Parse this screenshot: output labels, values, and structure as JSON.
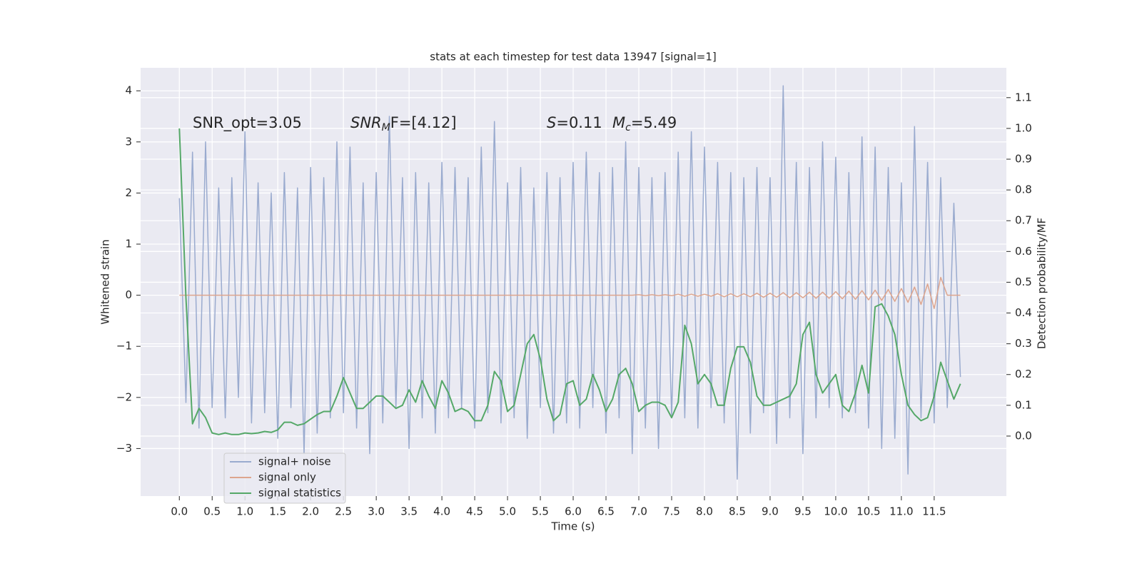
{
  "chart_data": {
    "type": "line",
    "title": "stats at each timestep for test data 13947 [signal=1]",
    "xlabel": "Time (s)",
    "ylabel": "Whitened strain",
    "y2label": "Detection probability/MF",
    "annotations": [
      {
        "main": "SNR_opt=3.05"
      },
      {
        "main": "SNR",
        "sub": "M",
        "rest": "F=[4.12]"
      },
      {
        "main": "S",
        "rest": "=0.11"
      },
      {
        "main": "M",
        "sub": "c",
        "rest": "=5.49"
      }
    ],
    "xlim": [
      -0.59,
      12.6
    ],
    "ylim": [
      -3.93,
      4.45
    ],
    "y2lim": [
      -0.195,
      1.197
    ],
    "xticks": [
      {
        "value": 0,
        "label": "0.0"
      },
      0.5,
      {
        "value": 1,
        "label": "1.0"
      },
      1.5,
      {
        "value": 2,
        "label": "2.0"
      },
      2.5,
      {
        "value": 3,
        "label": "3.0"
      },
      3.5,
      {
        "value": 4,
        "label": "4.0"
      },
      4.5,
      {
        "value": 5,
        "label": "5.0"
      },
      5.5,
      {
        "value": 6,
        "label": "6.0"
      },
      6.5,
      {
        "value": 7,
        "label": "7.0"
      },
      7.5,
      {
        "value": 8,
        "label": "8.0"
      },
      8.5,
      {
        "value": 9,
        "label": "9.0"
      },
      9.5,
      {
        "value": 10,
        "label": "10.0"
      },
      10.5,
      {
        "value": 11,
        "label": "11.0"
      },
      11.5
    ],
    "yticks": [
      {
        "value": -3,
        "label": "−3"
      },
      {
        "value": -2,
        "label": "−2"
      },
      {
        "value": -1,
        "label": "−1"
      },
      0,
      1,
      2,
      3,
      4
    ],
    "y2ticks": [
      {
        "value": 0,
        "label": "0.0"
      },
      0.1,
      0.2,
      0.3,
      0.4,
      0.5,
      0.6,
      0.7,
      0.8,
      0.9,
      {
        "value": 1,
        "label": "1.0"
      },
      1.1
    ],
    "grid": true,
    "legend": "lower left",
    "x": [
      0,
      0.1,
      0.2,
      0.3,
      0.4,
      0.5,
      0.6,
      0.7,
      0.8,
      0.9,
      1,
      1.1,
      1.2,
      1.3,
      1.4,
      1.5,
      1.6,
      1.7,
      1.8,
      1.9,
      2,
      2.1,
      2.2,
      2.3,
      2.4,
      2.5,
      2.6,
      2.7,
      2.8,
      2.9,
      3,
      3.1,
      3.2,
      3.3,
      3.4,
      3.5,
      3.6,
      3.7,
      3.8,
      3.9,
      4,
      4.1,
      4.2,
      4.3,
      4.4,
      4.5,
      4.6,
      4.7,
      4.8,
      4.9,
      5,
      5.1,
      5.2,
      5.3,
      5.4,
      5.5,
      5.6,
      5.7,
      5.8,
      5.9,
      6,
      6.1,
      6.2,
      6.3,
      6.4,
      6.5,
      6.6,
      6.7,
      6.8,
      6.9,
      7,
      7.1,
      7.2,
      7.3,
      7.4,
      7.5,
      7.6,
      7.7,
      7.8,
      7.9,
      8,
      8.1,
      8.2,
      8.3,
      8.4,
      8.5,
      8.6,
      8.7,
      8.8,
      8.9,
      9,
      9.1,
      9.2,
      9.3,
      9.4,
      9.5,
      9.6,
      9.7,
      9.8,
      9.9,
      10,
      10.1,
      10.2,
      10.3,
      10.4,
      10.5,
      10.6,
      10.7,
      10.8,
      10.9,
      11,
      11.1,
      11.2,
      11.3,
      11.4,
      11.5,
      11.6,
      11.7,
      11.8,
      11.9
    ],
    "series": [
      {
        "name": "signal+ noise",
        "color": "#9aabcf",
        "axis": "y",
        "width": 1.5,
        "values": [
          1.9,
          -2.1,
          2.8,
          -2.6,
          3.0,
          -2.2,
          2.1,
          -2.4,
          2.3,
          -2.0,
          3.2,
          -2.5,
          2.2,
          -2.3,
          2.0,
          -2.8,
          2.4,
          -2.2,
          2.1,
          -3.1,
          2.5,
          -2.7,
          2.3,
          -2.4,
          3.0,
          -2.3,
          2.9,
          -2.6,
          2.2,
          -3.1,
          2.4,
          -2.5,
          3.5,
          -2.2,
          2.3,
          -3.0,
          2.4,
          -2.4,
          2.2,
          -2.7,
          2.6,
          -2.4,
          2.5,
          -2.2,
          2.3,
          -2.6,
          2.9,
          -2.3,
          3.4,
          -2.5,
          2.2,
          -2.4,
          2.5,
          -2.8,
          2.1,
          -2.2,
          2.4,
          -2.7,
          2.3,
          -2.5,
          2.6,
          -2.6,
          2.8,
          -2.2,
          2.4,
          -2.7,
          2.5,
          -2.4,
          3.0,
          -3.1,
          2.5,
          -2.6,
          2.3,
          -3.0,
          2.4,
          -2.4,
          2.8,
          -2.4,
          3.2,
          -2.6,
          2.9,
          -2.2,
          2.6,
          -2.5,
          2.4,
          -3.6,
          2.3,
          -2.7,
          2.5,
          -2.3,
          2.3,
          -2.9,
          4.1,
          -2.4,
          2.6,
          -3.1,
          2.5,
          -2.4,
          3.0,
          -2.2,
          2.7,
          -2.4,
          2.4,
          -2.3,
          3.1,
          -2.6,
          2.9,
          -3.0,
          2.5,
          -2.8,
          2.2,
          -3.5,
          3.3,
          -2.4,
          2.6,
          -2.5,
          2.3,
          -2.2,
          1.8,
          -1.6
        ]
      },
      {
        "name": "signal only",
        "color": "#dda58e",
        "axis": "y",
        "width": 1.5,
        "values": [
          0,
          0,
          0,
          0,
          0,
          0,
          0,
          0,
          0,
          0,
          0,
          0,
          0,
          0,
          0,
          0,
          0,
          0,
          0,
          0,
          0,
          0,
          0,
          0,
          0,
          0,
          0,
          0,
          0,
          0,
          0,
          0,
          0,
          0,
          0,
          0,
          0,
          0,
          0,
          0,
          0,
          0,
          0,
          0,
          0,
          0,
          0,
          0,
          0,
          0,
          0,
          0,
          0,
          0,
          0,
          0,
          0,
          0,
          0,
          0,
          0,
          0,
          0,
          0,
          0,
          0,
          0,
          0,
          0,
          0,
          0.01,
          -0.01,
          0.01,
          -0.01,
          0.01,
          -0.01,
          0.02,
          -0.02,
          0.02,
          -0.02,
          0.02,
          -0.02,
          0.03,
          -0.03,
          0.03,
          -0.03,
          0.03,
          -0.03,
          0.04,
          -0.04,
          0.04,
          -0.04,
          0.05,
          -0.05,
          0.05,
          -0.05,
          0.06,
          -0.06,
          0.06,
          -0.06,
          0.07,
          -0.07,
          0.08,
          -0.08,
          0.09,
          -0.09,
          0.1,
          -0.1,
          0.11,
          -0.12,
          0.13,
          -0.14,
          0.16,
          -0.18,
          0.22,
          -0.26,
          0.35,
          0,
          0,
          0
        ]
      },
      {
        "name": "signal statistics",
        "color": "#55a868",
        "axis": "y2",
        "width": 2,
        "values": [
          1.0,
          0.45,
          0.04,
          0.09,
          0.06,
          0.01,
          0.005,
          0.01,
          0.005,
          0.005,
          0.01,
          0.008,
          0.01,
          0.015,
          0.012,
          0.02,
          0.045,
          0.045,
          0.035,
          0.04,
          0.055,
          0.07,
          0.08,
          0.08,
          0.13,
          0.19,
          0.14,
          0.09,
          0.09,
          0.11,
          0.13,
          0.13,
          0.11,
          0.09,
          0.1,
          0.15,
          0.11,
          0.18,
          0.13,
          0.09,
          0.18,
          0.14,
          0.08,
          0.09,
          0.08,
          0.05,
          0.05,
          0.1,
          0.21,
          0.18,
          0.08,
          0.1,
          0.2,
          0.3,
          0.33,
          0.25,
          0.12,
          0.05,
          0.07,
          0.17,
          0.18,
          0.1,
          0.12,
          0.2,
          0.15,
          0.08,
          0.12,
          0.2,
          0.22,
          0.17,
          0.08,
          0.1,
          0.11,
          0.11,
          0.1,
          0.06,
          0.11,
          0.36,
          0.3,
          0.17,
          0.2,
          0.17,
          0.1,
          0.1,
          0.22,
          0.29,
          0.29,
          0.24,
          0.13,
          0.1,
          0.1,
          0.11,
          0.12,
          0.13,
          0.17,
          0.33,
          0.37,
          0.2,
          0.14,
          0.17,
          0.2,
          0.1,
          0.08,
          0.14,
          0.23,
          0.14,
          0.42,
          0.43,
          0.39,
          0.33,
          0.2,
          0.1,
          0.07,
          0.05,
          0.06,
          0.13,
          0.24,
          0.18,
          0.12,
          0.17
        ]
      }
    ]
  }
}
